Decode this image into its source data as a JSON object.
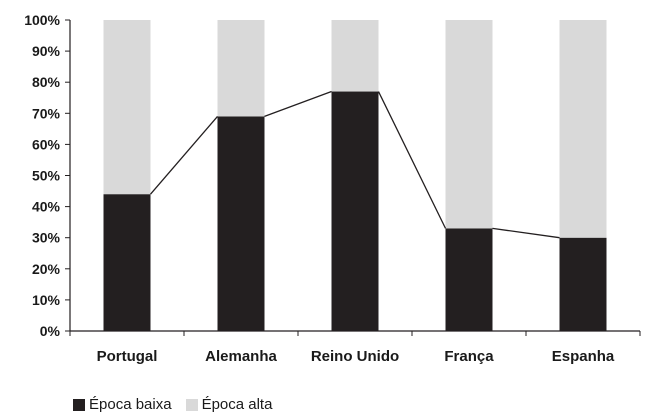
{
  "chart_data": {
    "type": "bar",
    "stacked": true,
    "categories": [
      "Portugal",
      "Alemanha",
      "Reino Unido",
      "França",
      "Espanha"
    ],
    "series": [
      {
        "name": "Época baixa",
        "values": [
          44,
          69,
          77,
          33,
          30
        ],
        "color": "#231f20"
      },
      {
        "name": "Época alta",
        "values": [
          56,
          31,
          23,
          67,
          70
        ],
        "color": "#d9d9d9"
      }
    ],
    "line_overlay": {
      "values": [
        44,
        69,
        77,
        33,
        30
      ],
      "color": "#231f20"
    },
    "ylim": [
      0,
      100
    ],
    "y_ticks": [
      "0%",
      "10%",
      "20%",
      "30%",
      "40%",
      "50%",
      "60%",
      "70%",
      "80%",
      "90%",
      "100%"
    ],
    "legend_position": "bottom-left",
    "grid": false
  }
}
